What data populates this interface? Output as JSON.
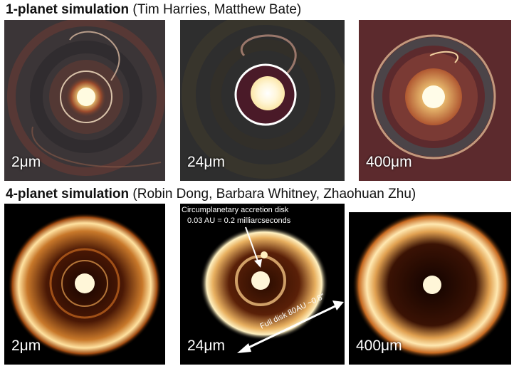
{
  "row1": {
    "title_bold": "1-planet simulation",
    "title_rest": " (Tim Harries, Matthew Bate)",
    "panels": [
      {
        "label": "2μm"
      },
      {
        "label": "24μm"
      },
      {
        "label": "400μm"
      }
    ]
  },
  "row2": {
    "title_bold": "4-planet simulation",
    "title_rest": " (Robin Dong, Barbara Whitney, Zhaohuan Zhu)",
    "panels": [
      {
        "label": "2μm"
      },
      {
        "label": "24μm"
      },
      {
        "label": "400μm"
      }
    ],
    "annotation_line1": "Circumplanetary accretion disk",
    "annotation_line2": "0.03 AU = 0.2 milliarcseconds",
    "fulldisk_label": "Full disk 80AU ~0.8\""
  }
}
